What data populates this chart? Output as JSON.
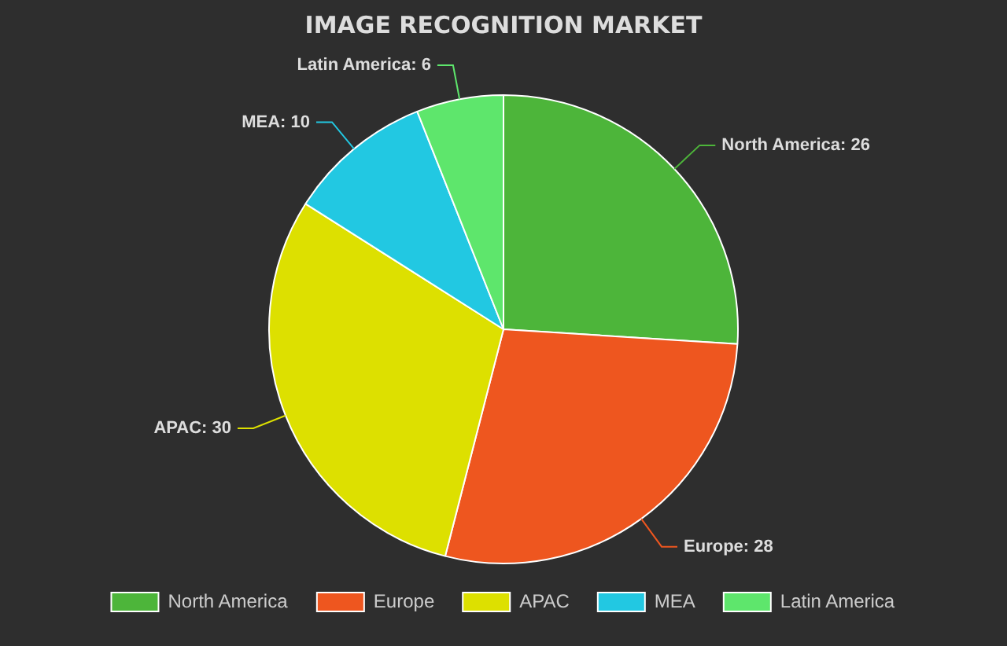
{
  "chart_data": {
    "type": "pie",
    "title": "IMAGE RECOGNITION MARKET",
    "categories": [
      "North America",
      "Europe",
      "APAC",
      "MEA",
      "Latin America"
    ],
    "values": [
      26,
      28,
      30,
      10,
      6
    ],
    "colors": [
      "#4db53a",
      "#ee561f",
      "#dde000",
      "#22c8e2",
      "#5ee66c"
    ],
    "value_labels": [
      "North America: 26",
      "Europe: 28",
      "APAC: 30",
      "MEA: 10",
      "Latin America: 6"
    ],
    "legend": "bottom"
  }
}
